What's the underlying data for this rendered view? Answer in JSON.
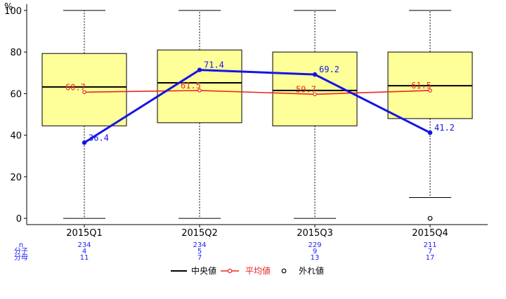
{
  "chart_data": {
    "type": "box",
    "y_unit_label": "%",
    "ylim": [
      -3,
      103
    ],
    "y_ticks": [
      0,
      20,
      40,
      60,
      80,
      100
    ],
    "categories": [
      "2015Q1",
      "2015Q2",
      "2015Q3",
      "2015Q4"
    ],
    "boxes": [
      {
        "min": 0,
        "q1": 44.5,
        "median": 63.2,
        "q3": 79.3,
        "max": 100,
        "outliers": []
      },
      {
        "min": 0,
        "q1": 46.0,
        "median": 65.2,
        "q3": 81.0,
        "max": 100,
        "outliers": []
      },
      {
        "min": 0,
        "q1": 44.5,
        "median": 61.5,
        "q3": 80.0,
        "max": 100,
        "outliers": []
      },
      {
        "min": 10,
        "q1": 48.0,
        "median": 63.8,
        "q3": 80.0,
        "max": 100,
        "outliers": [
          0
        ]
      }
    ],
    "series": [
      {
        "name": "平均値",
        "color": "#e8281e",
        "values": [
          60.7,
          61.5,
          59.7,
          61.5
        ],
        "labels": [
          "60.7",
          "61.5",
          "59.7",
          "61.5"
        ]
      },
      {
        "name": "",
        "color": "#1414e6",
        "values": [
          36.4,
          71.4,
          69.2,
          41.2
        ],
        "labels": [
          "36.4",
          "71.4",
          "69.2",
          "41.2"
        ]
      }
    ],
    "stats_rows": [
      {
        "label": "n",
        "values": [
          "234",
          "234",
          "229",
          "211"
        ]
      },
      {
        "label": "分子",
        "values": [
          "4",
          "5",
          "9",
          "7"
        ]
      },
      {
        "label": "分母",
        "values": [
          "11",
          "7",
          "13",
          "17"
        ]
      }
    ],
    "legend": {
      "placement": "bottom",
      "items": [
        {
          "label": "中央値",
          "kind": "line",
          "color": "#000000"
        },
        {
          "label": "平均値",
          "kind": "line-point",
          "color": "#e8281e"
        },
        {
          "label": "外れ値",
          "kind": "point",
          "color": "#000000"
        }
      ]
    },
    "box_fill": "#ffff99",
    "grid": false
  }
}
